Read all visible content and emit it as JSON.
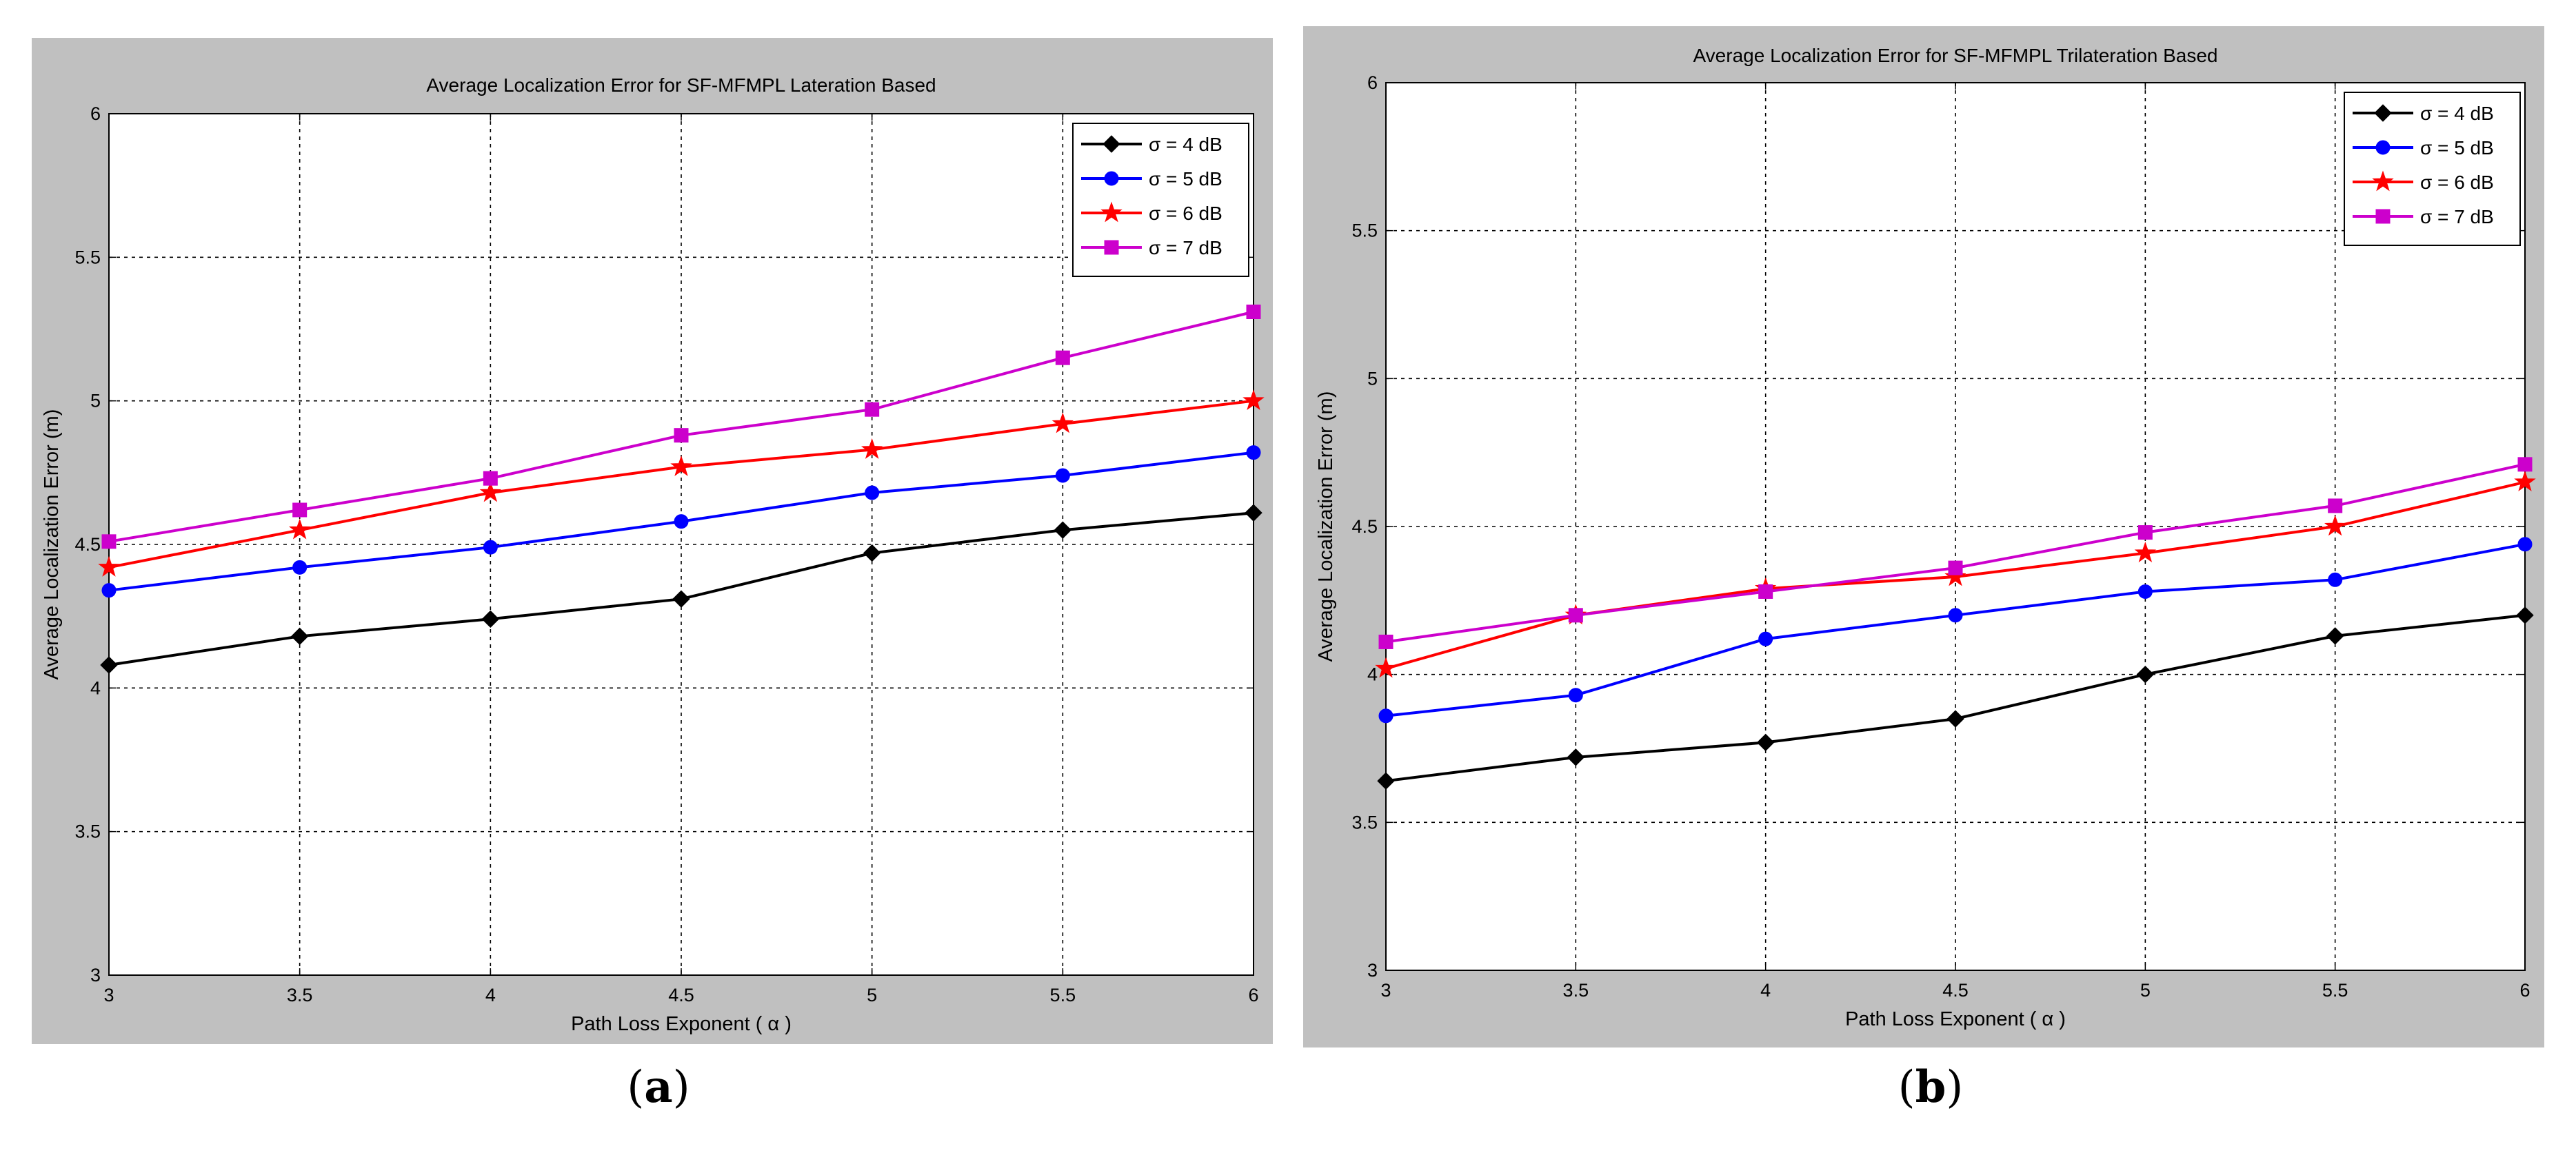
{
  "chart_data": [
    {
      "type": "line",
      "panel_label": "a",
      "title": "Average Localization Error for SF-MFMPL Lateration Based",
      "xlabel": "Path Loss Exponent ( α )",
      "ylabel": "Average Localization Error (m)",
      "xlim": [
        3,
        6
      ],
      "ylim": [
        3,
        6
      ],
      "xticks": [
        "3",
        "3.5",
        "4",
        "4.5",
        "5",
        "5.5",
        "6"
      ],
      "yticks": [
        "3",
        "3.5",
        "4",
        "4.5",
        "5",
        "5.5",
        "6"
      ],
      "grid": true,
      "legend_position": "top-right",
      "x": [
        3,
        3.5,
        4,
        4.5,
        5,
        5.5,
        6
      ],
      "series": [
        {
          "name": "σ = 4 dB",
          "color": "#000000",
          "marker": "diamond",
          "values": [
            4.08,
            4.18,
            4.24,
            4.31,
            4.47,
            4.55,
            4.61
          ]
        },
        {
          "name": "σ = 5 dB",
          "color": "#0000ff",
          "marker": "circle",
          "values": [
            4.34,
            4.42,
            4.49,
            4.58,
            4.68,
            4.74,
            4.82
          ]
        },
        {
          "name": "σ = 6 dB",
          "color": "#ff0000",
          "marker": "star",
          "values": [
            4.42,
            4.55,
            4.68,
            4.77,
            4.83,
            4.92,
            5.0
          ]
        },
        {
          "name": "σ = 7 dB",
          "color": "#cc00cc",
          "marker": "square",
          "values": [
            4.51,
            4.62,
            4.73,
            4.88,
            4.97,
            5.15,
            5.31
          ]
        }
      ]
    },
    {
      "type": "line",
      "panel_label": "b",
      "title": "Average Localization Error for SF-MFMPL Trilateration Based",
      "xlabel": "Path Loss Exponent ( α )",
      "ylabel": "Average Localization Error (m)",
      "xlim": [
        3,
        6
      ],
      "ylim": [
        3,
        6
      ],
      "xticks": [
        "3",
        "3.5",
        "4",
        "4.5",
        "5",
        "5.5",
        "6"
      ],
      "yticks": [
        "3",
        "3.5",
        "4",
        "4.5",
        "5",
        "5.5",
        "6"
      ],
      "grid": true,
      "legend_position": "top-right",
      "x": [
        3,
        3.5,
        4,
        4.5,
        5,
        5.5,
        6
      ],
      "series": [
        {
          "name": "σ = 4 dB",
          "color": "#000000",
          "marker": "diamond",
          "values": [
            3.64,
            3.72,
            3.77,
            3.85,
            4.0,
            4.13,
            4.2
          ]
        },
        {
          "name": "σ = 5 dB",
          "color": "#0000ff",
          "marker": "circle",
          "values": [
            3.86,
            3.93,
            4.12,
            4.2,
            4.28,
            4.32,
            4.44
          ]
        },
        {
          "name": "σ = 6 dB",
          "color": "#ff0000",
          "marker": "star",
          "values": [
            4.02,
            4.2,
            4.29,
            4.33,
            4.41,
            4.5,
            4.65
          ]
        },
        {
          "name": "σ = 7 dB",
          "color": "#cc00cc",
          "marker": "square",
          "values": [
            4.11,
            4.2,
            4.28,
            4.36,
            4.48,
            4.57,
            4.71
          ]
        }
      ]
    }
  ]
}
